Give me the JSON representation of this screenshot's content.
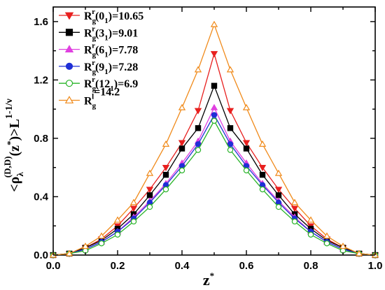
{
  "chart_data": {
    "type": "line",
    "xlabel": "z",
    "xlabel_sup": "*",
    "ylabel_parts": {
      "open": "<ρ",
      "sub": "λ",
      "sup": "(D,D)",
      "mid": "(z",
      "mid_sup": "*",
      "close": ")>L",
      "exp": "1-1/ν"
    },
    "xlim": [
      0.0,
      1.0
    ],
    "ylim": [
      0.0,
      1.7
    ],
    "xticks": [
      "0.0",
      "0.2",
      "0.4",
      "0.6",
      "0.8",
      "1.0"
    ],
    "yticks": [
      "0.0",
      "0.4",
      "0.8",
      "1.2",
      "1.6"
    ],
    "x": [
      0.0,
      0.05,
      0.1,
      0.15,
      0.2,
      0.25,
      0.3,
      0.35,
      0.4,
      0.45,
      0.5,
      0.55,
      0.6,
      0.65,
      0.7,
      0.75,
      0.8,
      0.85,
      0.9,
      0.95,
      1.0
    ],
    "legend_position": "top-left",
    "series": [
      {
        "label": {
          "base": "R",
          "sub": "g",
          "sup": "r",
          "rest": "(0",
          "rest_sub": "1",
          "value": ")=10.65"
        },
        "color": "#e8201f",
        "marker": "triangle-down",
        "filled": true,
        "values": [
          0.0,
          0.01,
          0.05,
          0.11,
          0.2,
          0.32,
          0.45,
          0.6,
          0.77,
          0.99,
          1.38,
          0.99,
          0.77,
          0.6,
          0.45,
          0.32,
          0.2,
          0.11,
          0.05,
          0.01,
          0.0
        ]
      },
      {
        "label": {
          "base": "R",
          "sub": "g",
          "sup": "r",
          "rest": "(3",
          "rest_sub": "1",
          "value": ")=9.01"
        },
        "color": "#000000",
        "marker": "square",
        "filled": true,
        "values": [
          0.0,
          0.01,
          0.05,
          0.1,
          0.18,
          0.28,
          0.41,
          0.55,
          0.73,
          0.87,
          1.16,
          0.87,
          0.73,
          0.55,
          0.41,
          0.28,
          0.18,
          0.1,
          0.05,
          0.01,
          0.0
        ]
      },
      {
        "label": {
          "base": "R",
          "sub": "g",
          "sup": "r",
          "rest": "(6",
          "rest_sub": "1",
          "value": ")=7.78"
        },
        "color": "#e040e0",
        "marker": "triangle-up",
        "filled": true,
        "values": [
          0.0,
          0.01,
          0.04,
          0.09,
          0.16,
          0.26,
          0.37,
          0.49,
          0.63,
          0.78,
          1.01,
          0.78,
          0.63,
          0.49,
          0.37,
          0.26,
          0.16,
          0.09,
          0.04,
          0.01,
          0.0
        ]
      },
      {
        "label": {
          "base": "R",
          "sub": "g",
          "sup": "r",
          "rest": "(9",
          "rest_sub": "1",
          "value": ")=7.28"
        },
        "color": "#1f2fd6",
        "marker": "circle",
        "filled": true,
        "values": [
          0.0,
          0.01,
          0.04,
          0.09,
          0.16,
          0.25,
          0.36,
          0.48,
          0.61,
          0.76,
          0.96,
          0.76,
          0.61,
          0.48,
          0.36,
          0.25,
          0.16,
          0.09,
          0.04,
          0.01,
          0.0
        ]
      },
      {
        "label": {
          "base": "R",
          "sub": "g",
          "sup": "r",
          "rest": "(12",
          "rest_sub": "1",
          "value": ")=6.9"
        },
        "color": "#27b327",
        "marker": "circle",
        "filled": false,
        "values": [
          0.0,
          0.01,
          0.03,
          0.08,
          0.14,
          0.23,
          0.33,
          0.45,
          0.58,
          0.72,
          0.92,
          0.72,
          0.58,
          0.45,
          0.33,
          0.23,
          0.14,
          0.08,
          0.03,
          0.01,
          0.0
        ]
      },
      {
        "label": {
          "base": "R",
          "sub": "g",
          "sup": "l",
          "rest": "",
          "rest_sub": "",
          "value": "=14.2"
        },
        "color": "#f08a1a",
        "marker": "triangle-up",
        "filled": false,
        "values": [
          0.0,
          0.01,
          0.06,
          0.13,
          0.24,
          0.36,
          0.56,
          0.76,
          1.01,
          1.27,
          1.58,
          1.27,
          1.01,
          0.76,
          0.56,
          0.36,
          0.24,
          0.13,
          0.06,
          0.01,
          0.0
        ]
      }
    ]
  }
}
